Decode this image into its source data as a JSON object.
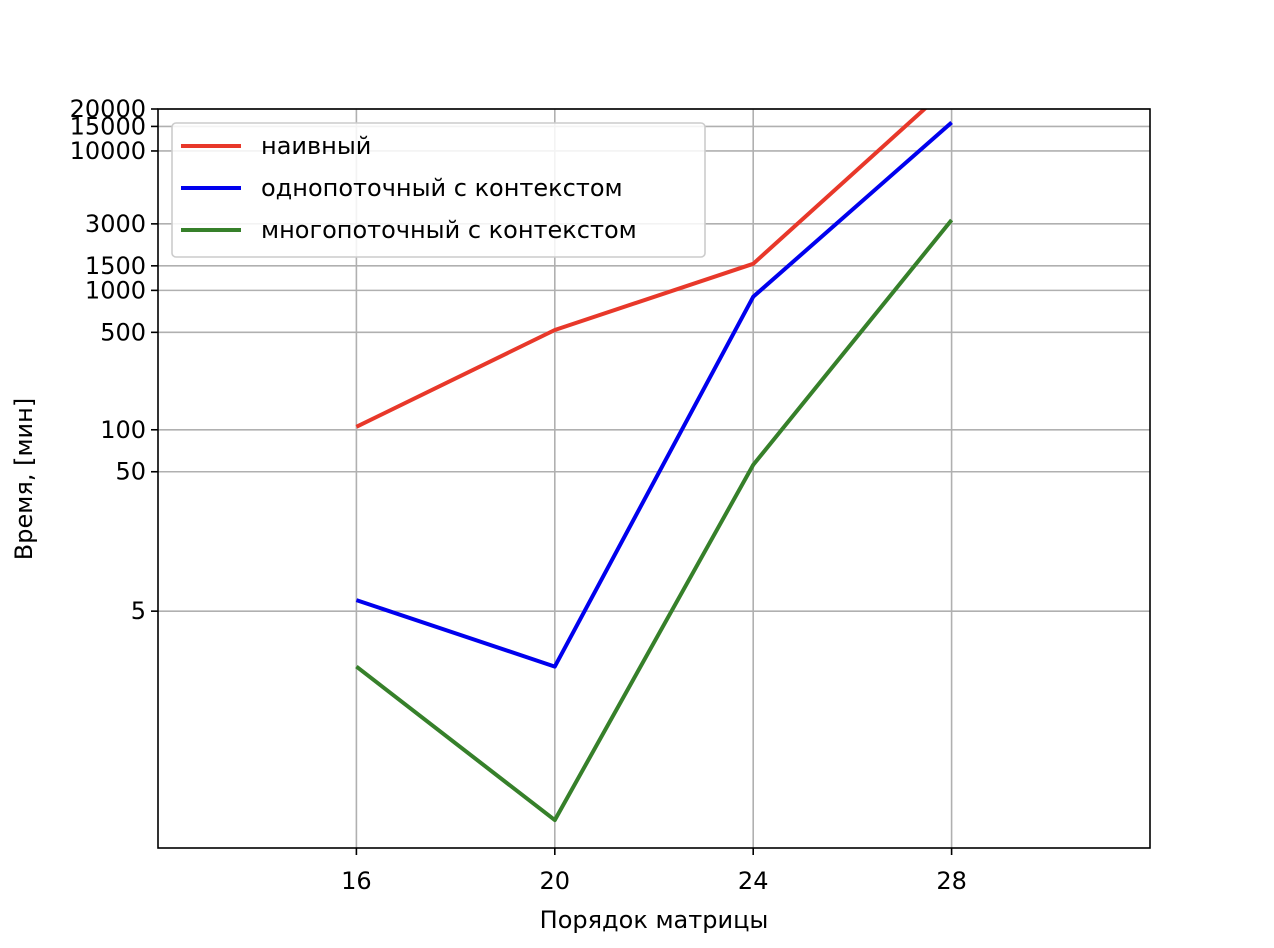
{
  "chart_data": {
    "type": "line",
    "title": "",
    "xlabel": "Порядок матрицы",
    "ylabel": "Время, [мин]",
    "x": [
      16,
      20,
      24,
      28
    ],
    "xlim": [
      12,
      32
    ],
    "x_ticks": [
      16,
      20,
      24,
      28
    ],
    "y_scale": "symlog",
    "ylim": [
      0,
      20000
    ],
    "y_ticks": [
      5,
      50,
      100,
      500,
      1000,
      1500,
      3000,
      10000,
      15000,
      20000
    ],
    "grid": true,
    "legend_position": "top-left",
    "series": [
      {
        "name": "наивный",
        "color": "#e8382a",
        "values": [
          105,
          520,
          1550,
          30000
        ]
      },
      {
        "name": "однопоточный с контекстом",
        "color": "#0000ee",
        "values": [
          6,
          2,
          900,
          16000
        ]
      },
      {
        "name": "многопоточный с контекстом",
        "color": "#36802a",
        "values": [
          2,
          0.2,
          56,
          3200
        ]
      }
    ]
  }
}
